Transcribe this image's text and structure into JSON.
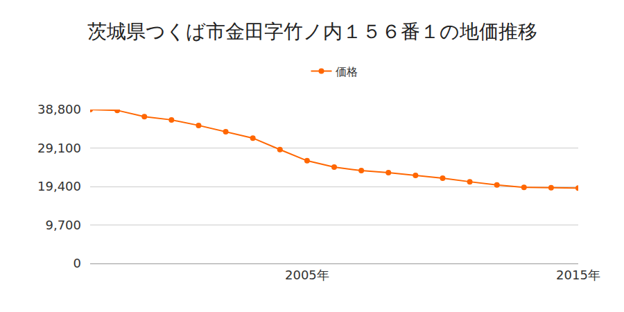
{
  "chart_data": {
    "type": "line",
    "title": "茨城県つくば市金田字竹ノ内１５６番１の地価推移",
    "x": [
      1997,
      1998,
      1999,
      2000,
      2001,
      2002,
      2003,
      2004,
      2005,
      2006,
      2007,
      2008,
      2009,
      2010,
      2011,
      2012,
      2013,
      2014,
      2015
    ],
    "series": [
      {
        "name": "価格",
        "color": "#ff6600",
        "marker": "circle",
        "values": [
          38800,
          38600,
          37000,
          36200,
          34800,
          33200,
          31600,
          28700,
          25900,
          24300,
          23400,
          22900,
          22200,
          21500,
          20600,
          19800,
          19200,
          19100,
          19000
        ]
      }
    ],
    "xlim": [
      1997,
      2015
    ],
    "xticks": [
      {
        "value": 2005,
        "label": "2005年"
      },
      {
        "value": 2015,
        "label": "2015年"
      }
    ],
    "ylim": [
      0,
      38800
    ],
    "yticks": [
      0,
      {
        "value": 9700,
        "label": "9,700"
      },
      {
        "value": 19400,
        "label": "19,400"
      },
      {
        "value": 29100,
        "label": "29,100"
      },
      {
        "value": 38800,
        "label": "38,800"
      }
    ],
    "grid": true,
    "legend": "top"
  }
}
